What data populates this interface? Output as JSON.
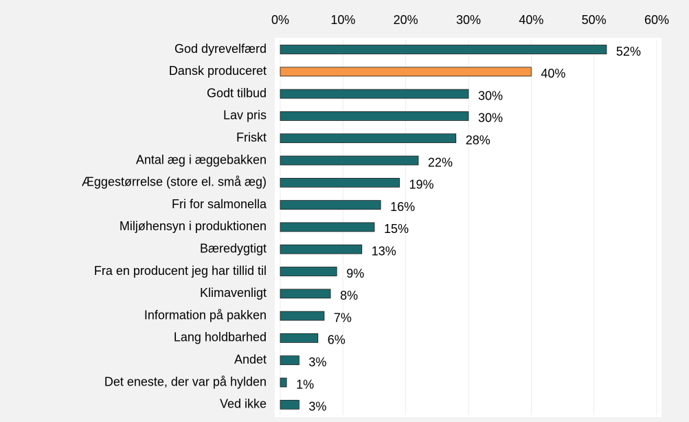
{
  "chart_data": {
    "type": "bar",
    "orientation": "horizontal",
    "categories": [
      "God dyrevelfærd",
      "Dansk produceret",
      "Godt tilbud",
      "Lav pris",
      "Friskt",
      "Antal æg i æggebakken",
      "Æggestørrelse (store el. små æg)",
      "Fri for salmonella",
      "Miljøhensyn i produktionen",
      "Bæredygtigt",
      "Fra en producent jeg har tillid til",
      "Klimavenligt",
      "Information på pakken",
      "Lang holdbarhed",
      "Andet",
      "Det eneste, der var på hylden",
      "Ved ikke"
    ],
    "values": [
      52,
      40,
      30,
      30,
      28,
      22,
      19,
      16,
      15,
      13,
      9,
      8,
      7,
      6,
      3,
      1,
      3
    ],
    "value_labels": [
      "52%",
      "40%",
      "30%",
      "30%",
      "28%",
      "22%",
      "19%",
      "16%",
      "15%",
      "13%",
      "9%",
      "8%",
      "7%",
      "6%",
      "3%",
      "1%",
      "3%"
    ],
    "colors": [
      "#1b6b6e",
      "#f79646",
      "#1b6b6e",
      "#1b6b6e",
      "#1b6b6e",
      "#1b6b6e",
      "#1b6b6e",
      "#1b6b6e",
      "#1b6b6e",
      "#1b6b6e",
      "#1b6b6e",
      "#1b6b6e",
      "#1b6b6e",
      "#1b6b6e",
      "#1b6b6e",
      "#1b6b6e",
      "#1b6b6e"
    ],
    "xlim": [
      0,
      60
    ],
    "xticks": [
      {
        "value": 0,
        "label": "0%"
      },
      {
        "value": 10,
        "label": "10%"
      },
      {
        "value": 20,
        "label": "20%"
      },
      {
        "value": 30,
        "label": "30%"
      },
      {
        "value": 40,
        "label": "40%"
      },
      {
        "value": 50,
        "label": "50%"
      },
      {
        "value": 60,
        "label": "60%"
      }
    ],
    "grid": true
  }
}
